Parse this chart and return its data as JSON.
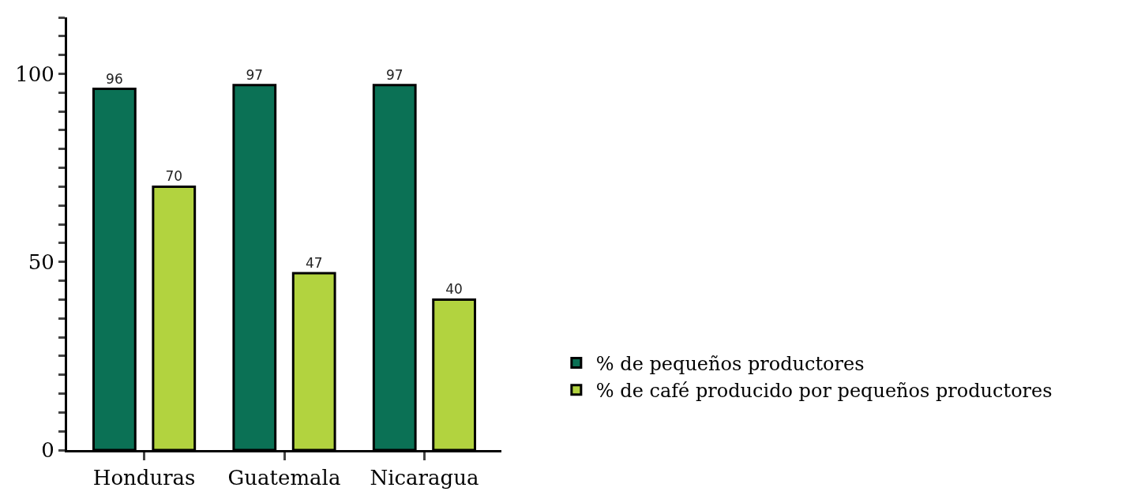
{
  "chart_data": {
    "type": "bar",
    "categories": [
      "Honduras",
      "Guatemala",
      "Nicaragua"
    ],
    "series": [
      {
        "name": "% de pequeños productores",
        "color": "#0b7155",
        "values": [
          96,
          97,
          97
        ]
      },
      {
        "name": "% de café producido por pequeños productores",
        "color": "#b2d33f",
        "values": [
          70,
          47,
          40
        ]
      }
    ],
    "ylim": [
      0,
      115
    ],
    "yticks": [
      0,
      {
        "value": 5,
        "label": null
      },
      {
        "value": 10,
        "label": null
      },
      {
        "value": 15,
        "label": null
      },
      {
        "value": 20,
        "label": null
      },
      {
        "value": 25,
        "label": null
      },
      {
        "value": 30,
        "label": null
      },
      {
        "value": 35,
        "label": null
      },
      {
        "value": 40,
        "label": null
      },
      {
        "value": 45,
        "label": null
      },
      50,
      {
        "value": 55,
        "label": null
      },
      {
        "value": 60,
        "label": null
      },
      {
        "value": 65,
        "label": null
      },
      {
        "value": 70,
        "label": null
      },
      {
        "value": 75,
        "label": null
      },
      {
        "value": 80,
        "label": null
      },
      {
        "value": 85,
        "label": null
      },
      {
        "value": 90,
        "label": null
      },
      {
        "value": 95,
        "label": null
      },
      100,
      {
        "value": 105,
        "label": null
      },
      {
        "value": 110,
        "label": null
      },
      {
        "value": 115,
        "label": null
      }
    ],
    "data_labels": true,
    "legend": "bottom right"
  }
}
